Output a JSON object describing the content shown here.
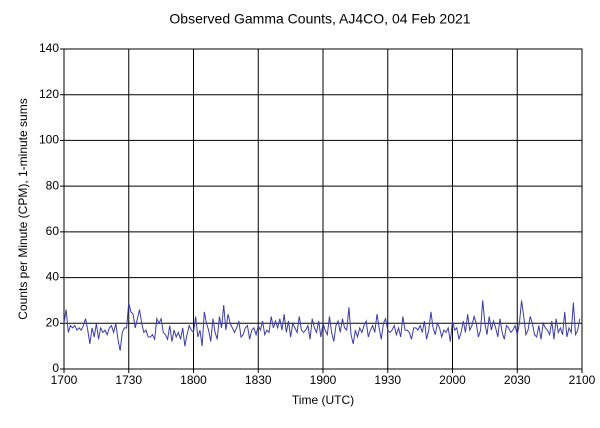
{
  "chart_data": {
    "type": "line",
    "title": "Observed Gamma Counts, AJ4CO, 04 Feb 2021",
    "xlabel": "Time (UTC)",
    "ylabel": "Counts per Minute (CPM), 1-minute sums",
    "xlim": [
      0,
      240
    ],
    "xticks": [
      {
        "value": 0,
        "label": "1700"
      },
      {
        "value": 30,
        "label": "1730"
      },
      {
        "value": 60,
        "label": "1800"
      },
      {
        "value": 90,
        "label": "1830"
      },
      {
        "value": 120,
        "label": "1900"
      },
      {
        "value": 150,
        "label": "1930"
      },
      {
        "value": 180,
        "label": "2000"
      },
      {
        "value": 210,
        "label": "2030"
      },
      {
        "value": 240,
        "label": "2100"
      }
    ],
    "ylim": [
      0,
      140
    ],
    "yticks": [
      0,
      20,
      40,
      60,
      80,
      100,
      120,
      140
    ],
    "grid": true,
    "color": "#3c3ca8",
    "values": [
      20,
      26,
      16,
      19,
      18,
      19,
      17,
      18,
      17,
      19,
      22,
      17,
      11,
      18,
      14,
      20,
      13,
      18,
      16,
      17,
      15,
      18,
      19,
      16,
      20,
      13,
      8,
      16,
      18,
      18,
      29,
      25,
      24,
      18,
      22,
      26,
      20,
      16,
      17,
      14,
      14,
      15,
      13,
      22,
      20,
      22,
      16,
      15,
      13,
      19,
      12,
      17,
      14,
      16,
      13,
      18,
      10,
      15,
      19,
      17,
      16,
      23,
      14,
      17,
      10,
      25,
      20,
      17,
      12,
      22,
      16,
      13,
      23,
      18,
      28,
      17,
      24,
      20,
      18,
      16,
      18,
      21,
      14,
      15,
      18,
      19,
      13,
      17,
      18,
      15,
      19,
      17,
      21,
      15,
      17,
      16,
      23,
      18,
      21,
      18,
      22,
      17,
      24,
      16,
      21,
      14,
      20,
      18,
      16,
      23,
      17,
      16,
      17,
      19,
      13,
      22,
      18,
      16,
      21,
      14,
      20,
      17,
      15,
      23,
      16,
      12,
      19,
      21,
      16,
      22,
      18,
      17,
      27,
      15,
      11,
      17,
      14,
      18,
      16,
      19,
      21,
      14,
      17,
      19,
      16,
      24,
      18,
      13,
      20,
      22,
      17,
      16,
      17,
      19,
      15,
      18,
      14,
      23,
      17,
      17,
      16,
      13,
      18,
      18,
      17,
      19,
      16,
      21,
      13,
      17,
      25,
      18,
      15,
      20,
      18,
      14,
      17,
      16,
      18,
      12,
      21,
      17,
      18,
      13,
      16,
      21,
      16,
      24,
      17,
      19,
      23,
      20,
      14,
      17,
      30,
      20,
      15,
      23,
      17,
      21,
      18,
      14,
      22,
      16,
      13,
      19,
      18,
      16,
      17,
      19,
      15,
      20,
      30,
      23,
      15,
      17,
      23,
      20,
      15,
      14,
      19,
      13,
      20,
      18,
      17,
      15,
      21,
      13,
      22,
      16,
      18,
      15,
      25,
      14,
      18,
      16,
      29,
      15,
      17,
      22
    ]
  }
}
